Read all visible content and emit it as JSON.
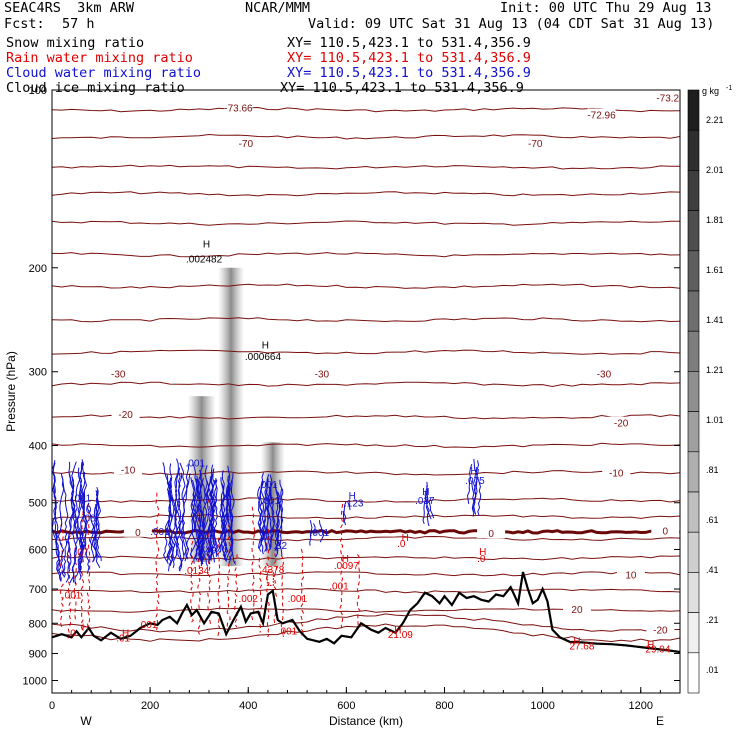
{
  "header": {
    "model": "SEAC4RS  3km ARW",
    "institution": "NCAR/MMM",
    "init": "Init: 00 UTC Thu 29 Aug 13",
    "fcst_label": "Fcst:",
    "fcst_value": "57 h",
    "valid": "Valid: 09 UTC Sat 31 Aug 13 (04 CDT Sat 31 Aug 13)",
    "fields": [
      {
        "name": "Snow mixing ratio",
        "xy": "XY= 110.5,423.1 to 531.4,356.9",
        "color": "#000000"
      },
      {
        "name": "Rain water mixing ratio",
        "xy": "XY= 110.5,423.1 to 531.4,356.9",
        "color": "#e00000"
      },
      {
        "name": "Cloud water mixing ratio",
        "xy": "XY= 110.5,423.1 to 531.4,356.9",
        "color": "#1010d0"
      },
      {
        "name": "Cloud ice mixing ratio",
        "xy": "XY= 110.5,423.1 to 531.4,356.9",
        "color": "#000000"
      }
    ]
  },
  "chart_data": {
    "type": "cross-section",
    "xlabel": "Distance (km)",
    "ylabel": "Pressure (hPa)",
    "xlim": [
      0,
      1280
    ],
    "ylim": [
      1050,
      100
    ],
    "x_ticks": [
      0,
      200,
      400,
      600,
      800,
      1000,
      1200
    ],
    "y_ticks": [
      100,
      200,
      300,
      400,
      500,
      600,
      700,
      800,
      900,
      1000
    ],
    "y_scale": "log",
    "west_label": "W",
    "east_label": "E",
    "colorbar": {
      "unit": "g kg",
      "unit_exp": "-1",
      "labels": [
        ".01",
        ".21",
        ".41",
        ".61",
        ".81",
        "1.01",
        "1.21",
        "1.41",
        "1.61",
        "1.81",
        "2.01",
        "2.21"
      ]
    },
    "temperature_labels": [
      {
        "text": "-73.66",
        "x": 380,
        "p": 107
      },
      {
        "text": "-72.96",
        "x": 1120,
        "p": 110
      },
      {
        "text": "-73.2",
        "x": 1255,
        "p": 103
      },
      {
        "text": "-70",
        "x": 395,
        "p": 123
      },
      {
        "text": "-70",
        "x": 985,
        "p": 123
      },
      {
        "text": "-30",
        "x": 135,
        "p": 302
      },
      {
        "text": "-30",
        "x": 550,
        "p": 302
      },
      {
        "text": "-30",
        "x": 1125,
        "p": 302
      },
      {
        "text": "-20",
        "x": 150,
        "p": 354
      },
      {
        "text": "-20",
        "x": 1160,
        "p": 366
      },
      {
        "text": "-10",
        "x": 155,
        "p": 439
      },
      {
        "text": "-10",
        "x": 1150,
        "p": 444
      },
      {
        "text": "0",
        "x": 175,
        "p": 560
      },
      {
        "text": "0",
        "x": 895,
        "p": 563
      },
      {
        "text": "0",
        "x": 1250,
        "p": 557
      },
      {
        "text": "10",
        "x": 1180,
        "p": 662
      },
      {
        "text": "20",
        "x": 1070,
        "p": 757
      },
      {
        "text": "-20",
        "x": 1240,
        "p": 820
      }
    ],
    "mixing_ratio_labels": [
      {
        "text": "H",
        "x": 315,
        "p": 182,
        "color": "#000000"
      },
      {
        "text": ".002482",
        "x": 310,
        "p": 193,
        "color": "#000000"
      },
      {
        "text": "H",
        "x": 435,
        "p": 270,
        "color": "#000000"
      },
      {
        "text": ".000664",
        "x": 430,
        "p": 282,
        "color": "#000000"
      },
      {
        "text": ".001",
        "x": 60,
        "p": 490,
        "color": "#1010d0"
      },
      {
        "text": ".0",
        "x": 72,
        "p": 512,
        "color": "#1010d0"
      },
      {
        "text": ".08",
        "x": 75,
        "p": 530,
        "color": "#1010d0"
      },
      {
        "text": ".001",
        "x": 292,
        "p": 427,
        "color": "#1010d0"
      },
      {
        "text": ".001",
        "x": 440,
        "p": 465,
        "color": "#1010d0"
      },
      {
        "text": ".001",
        "x": 445,
        "p": 495,
        "color": "#1010d0"
      },
      {
        "text": ".001",
        "x": 220,
        "p": 558,
        "color": "#1010d0"
      },
      {
        "text": ".001",
        "x": 545,
        "p": 560,
        "color": "#1010d0"
      },
      {
        "text": "H",
        "x": 612,
        "p": 485,
        "color": "#1010d0"
      },
      {
        "text": ".123",
        "x": 615,
        "p": 500,
        "color": "#1010d0"
      },
      {
        "text": "H",
        "x": 762,
        "p": 478,
        "color": "#1010d0"
      },
      {
        "text": ".037",
        "x": 760,
        "p": 495,
        "color": "#1010d0"
      },
      {
        "text": "H",
        "x": 860,
        "p": 440,
        "color": "#1010d0"
      },
      {
        "text": ".075",
        "x": 862,
        "p": 458,
        "color": "#1010d0"
      },
      {
        "text": ".32",
        "x": 465,
        "p": 590,
        "color": "#1010d0"
      },
      {
        "text": ".749",
        "x": 315,
        "p": 600,
        "color": "#1010d0"
      },
      {
        "text": ".0134",
        "x": 295,
        "p": 650,
        "color": "#e00000"
      },
      {
        "text": ".4378",
        "x": 448,
        "p": 647,
        "color": "#e00000"
      },
      {
        "text": ".07",
        "x": 60,
        "p": 605,
        "color": "#e00000"
      },
      {
        "text": ".001",
        "x": 40,
        "p": 715,
        "color": "#e00000"
      },
      {
        "text": "H",
        "x": 720,
        "p": 572,
        "color": "#e00000"
      },
      {
        "text": ".0",
        "x": 712,
        "p": 585,
        "color": "#e00000"
      },
      {
        "text": "H",
        "x": 878,
        "p": 603,
        "color": "#e00000"
      },
      {
        "text": ".0",
        "x": 875,
        "p": 620,
        "color": "#e00000"
      },
      {
        "text": "H",
        "x": 598,
        "p": 620,
        "color": "#e00000"
      },
      {
        "text": ".0097",
        "x": 600,
        "p": 637,
        "color": "#e00000"
      },
      {
        "text": ".001",
        "x": 585,
        "p": 690,
        "color": "#e00000"
      },
      {
        "text": ".002",
        "x": 400,
        "p": 725,
        "color": "#e00000"
      },
      {
        "text": ".001",
        "x": 500,
        "p": 725,
        "color": "#e00000"
      },
      {
        "text": ".001",
        "x": 195,
        "p": 803,
        "color": "#e00000"
      },
      {
        "text": ".001",
        "x": 480,
        "p": 823,
        "color": "#e00000"
      },
      {
        "text": "H",
        "x": 68,
        "p": 810,
        "color": "#e00000"
      },
      {
        "text": ".0",
        "x": 40,
        "p": 830,
        "color": "#e00000"
      },
      {
        "text": "H",
        "x": 150,
        "p": 830,
        "color": "#e00000"
      },
      {
        "text": ".01",
        "x": 145,
        "p": 845,
        "color": "#e00000"
      },
      {
        "text": "H",
        "x": 705,
        "p": 820,
        "color": "#e00000"
      },
      {
        "text": "21.09",
        "x": 710,
        "p": 835,
        "color": "#e00000"
      },
      {
        "text": "H",
        "x": 1070,
        "p": 855,
        "color": "#e00000"
      },
      {
        "text": "27.68",
        "x": 1080,
        "p": 872,
        "color": "#e00000"
      },
      {
        "text": "H",
        "x": 1220,
        "p": 868,
        "color": "#e00000"
      },
      {
        "text": "29.94",
        "x": 1235,
        "p": 883,
        "color": "#e00000"
      }
    ],
    "terrain_surface_hPa": [
      [
        0,
        845
      ],
      [
        20,
        835
      ],
      [
        40,
        845
      ],
      [
        50,
        825
      ],
      [
        60,
        845
      ],
      [
        75,
        815
      ],
      [
        85,
        840
      ],
      [
        100,
        855
      ],
      [
        120,
        830
      ],
      [
        140,
        850
      ],
      [
        160,
        840
      ],
      [
        180,
        815
      ],
      [
        200,
        800
      ],
      [
        215,
        805
      ],
      [
        225,
        790
      ],
      [
        240,
        780
      ],
      [
        255,
        800
      ],
      [
        265,
        770
      ],
      [
        275,
        745
      ],
      [
        285,
        775
      ],
      [
        295,
        760
      ],
      [
        310,
        800
      ],
      [
        325,
        765
      ],
      [
        340,
        770
      ],
      [
        355,
        835
      ],
      [
        370,
        790
      ],
      [
        385,
        750
      ],
      [
        395,
        795
      ],
      [
        405,
        770
      ],
      [
        420,
        765
      ],
      [
        430,
        800
      ],
      [
        440,
        715
      ],
      [
        450,
        705
      ],
      [
        460,
        790
      ],
      [
        470,
        800
      ],
      [
        490,
        790
      ],
      [
        505,
        825
      ],
      [
        520,
        850
      ],
      [
        545,
        860
      ],
      [
        560,
        850
      ],
      [
        575,
        865
      ],
      [
        590,
        840
      ],
      [
        610,
        845
      ],
      [
        630,
        800
      ],
      [
        650,
        820
      ],
      [
        665,
        830
      ],
      [
        680,
        815
      ],
      [
        700,
        830
      ],
      [
        715,
        800
      ],
      [
        730,
        760
      ],
      [
        745,
        740
      ],
      [
        760,
        710
      ],
      [
        775,
        720
      ],
      [
        790,
        740
      ],
      [
        800,
        720
      ],
      [
        815,
        745
      ],
      [
        830,
        710
      ],
      [
        845,
        725
      ],
      [
        860,
        720
      ],
      [
        875,
        730
      ],
      [
        890,
        735
      ],
      [
        905,
        715
      ],
      [
        920,
        720
      ],
      [
        935,
        695
      ],
      [
        950,
        740
      ],
      [
        960,
        655
      ],
      [
        970,
        700
      ],
      [
        980,
        740
      ],
      [
        990,
        730
      ],
      [
        1000,
        700
      ],
      [
        1010,
        735
      ],
      [
        1020,
        820
      ],
      [
        1035,
        845
      ],
      [
        1055,
        860
      ],
      [
        1080,
        862
      ],
      [
        1110,
        866
      ],
      [
        1140,
        868
      ],
      [
        1170,
        872
      ],
      [
        1200,
        878
      ],
      [
        1230,
        884
      ],
      [
        1260,
        890
      ],
      [
        1280,
        895
      ]
    ]
  }
}
